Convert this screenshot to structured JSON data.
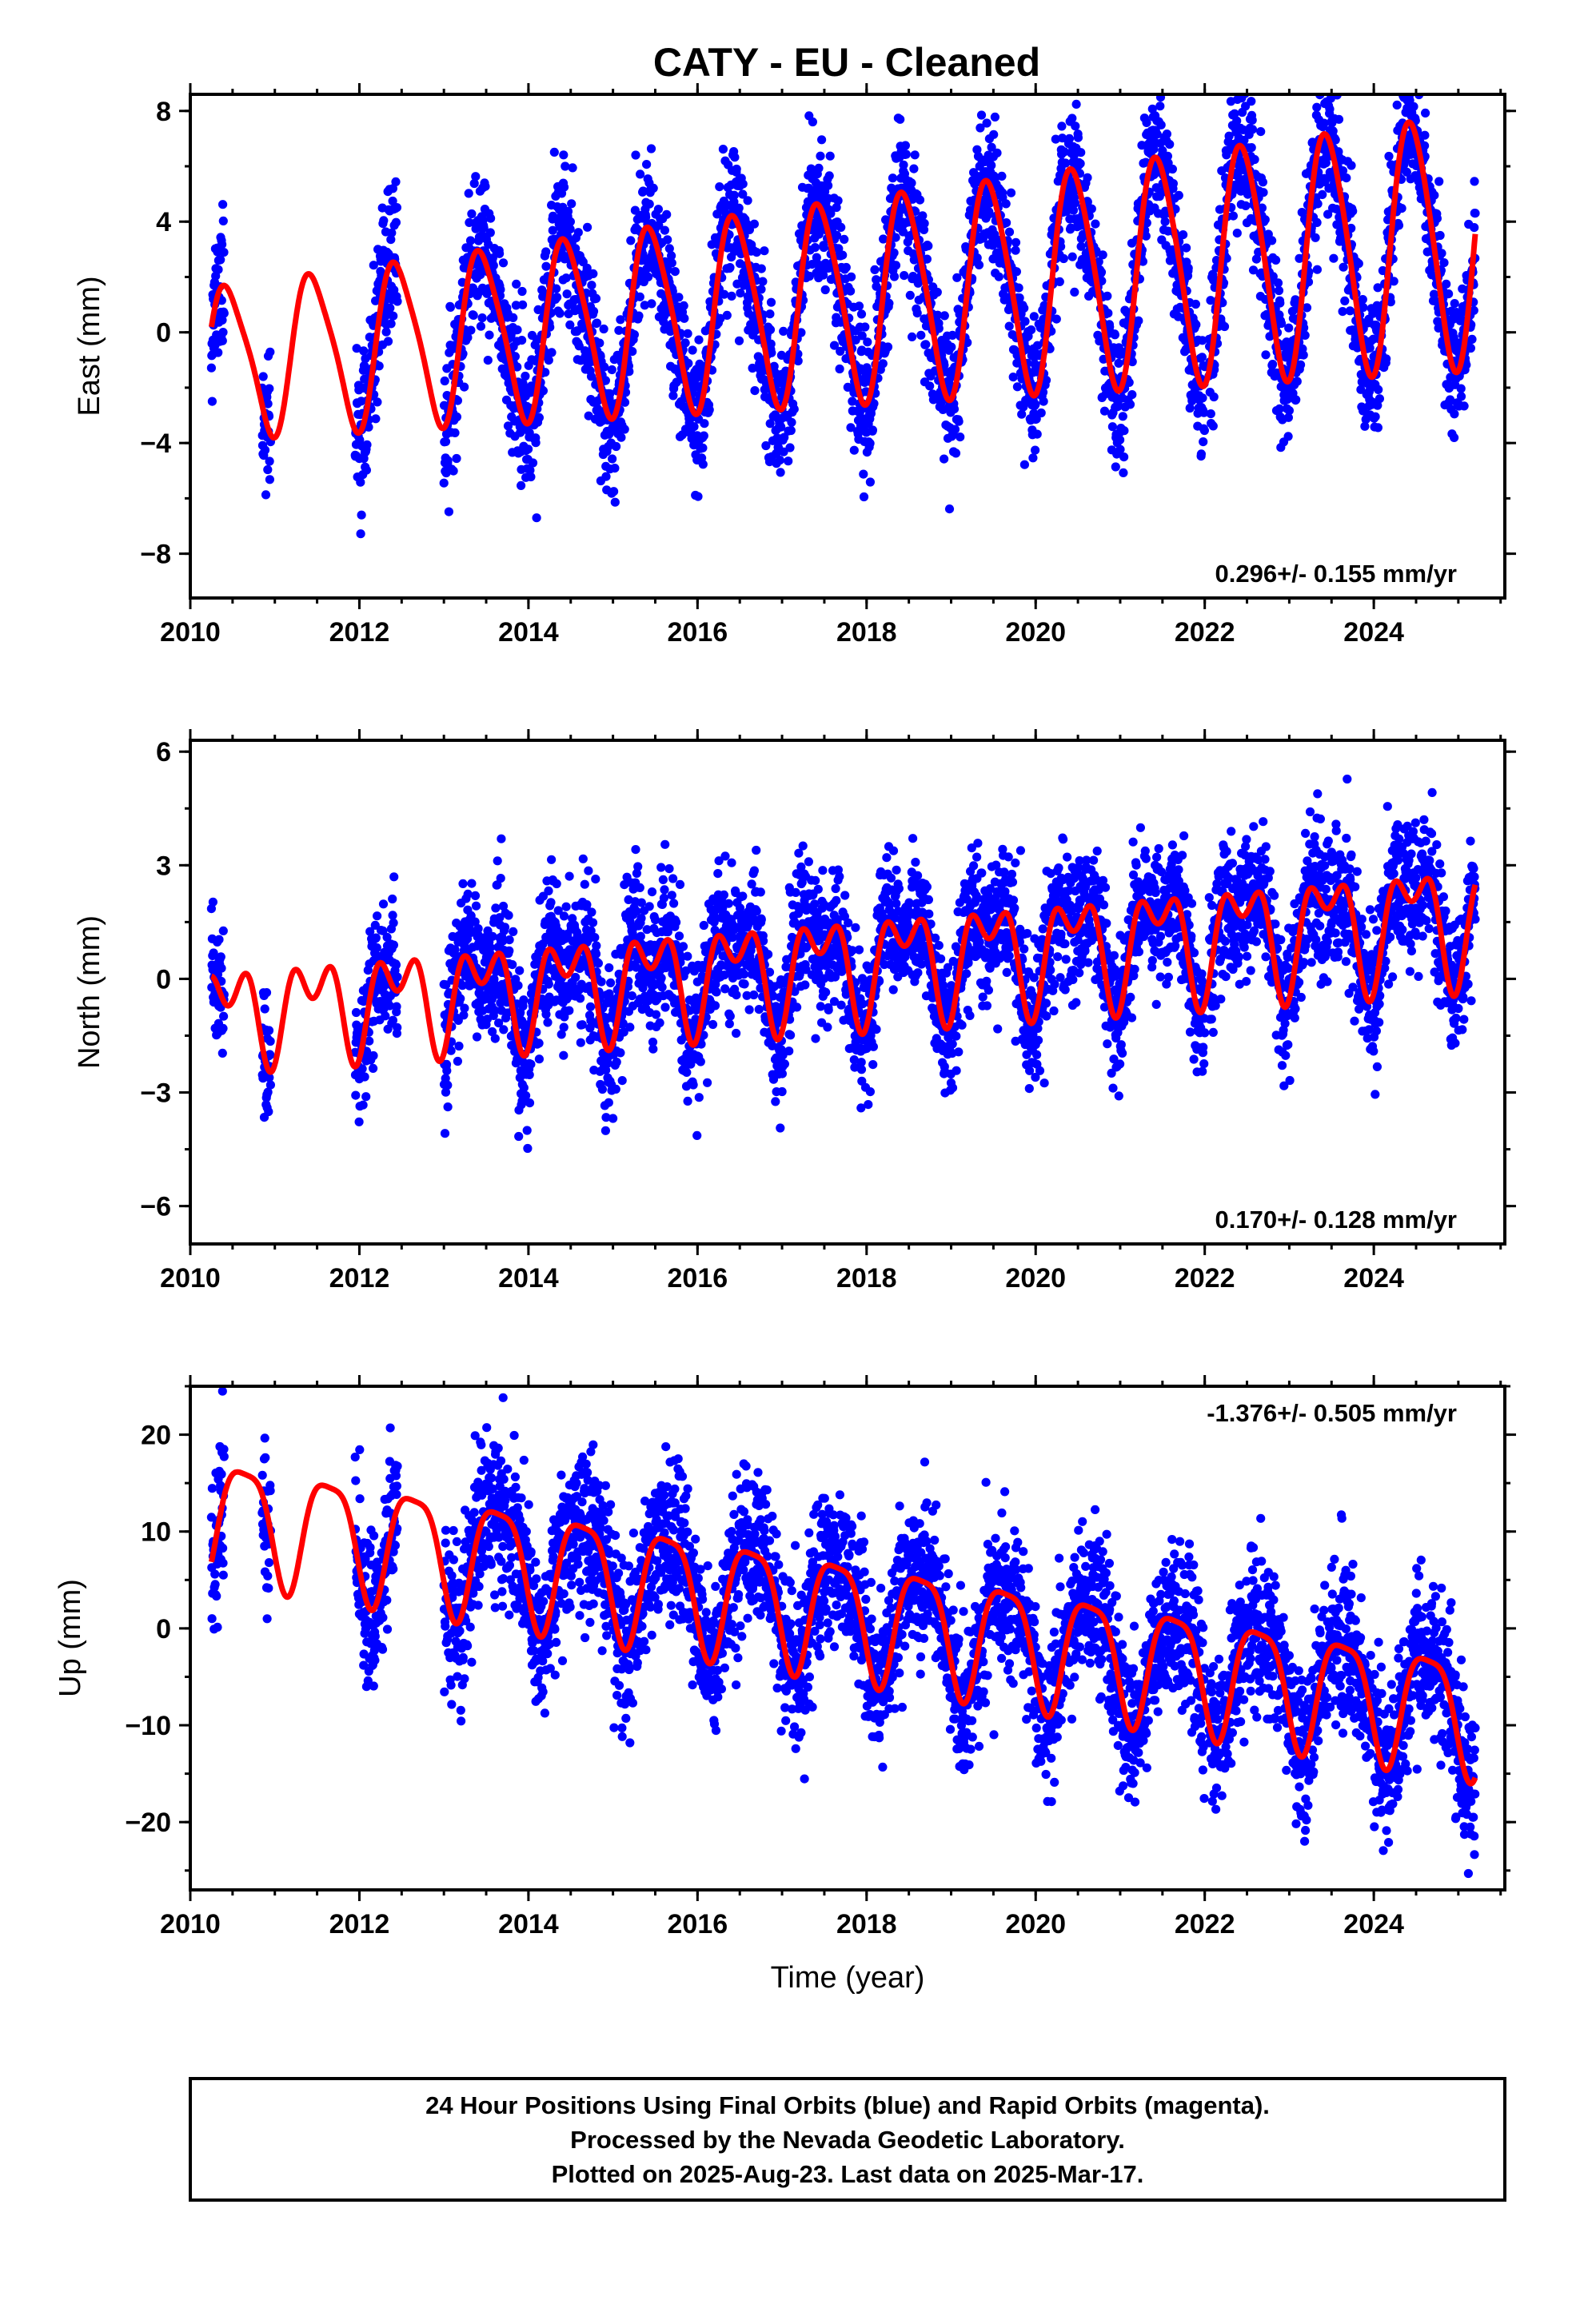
{
  "title": "CATY  - EU - Cleaned",
  "chart_data": [
    {
      "type": "scatter",
      "name": "east",
      "ylabel": "East (mm)",
      "xlabel": "",
      "xlim": [
        2010,
        2025.55
      ],
      "ylim": [
        -9.6,
        8.6
      ],
      "xticks": [
        2010,
        2012,
        2014,
        2016,
        2018,
        2020,
        2022,
        2024
      ],
      "yticks": [
        -8,
        -4,
        0,
        4,
        8
      ],
      "grid": false,
      "rate": "0.296+/- 0.155 mm/yr",
      "rate_position": "bottom-right",
      "colors": {
        "points": "#0000ff",
        "fit": "#ff0000"
      },
      "segments": [
        [
          2010.25,
          2010.4
        ],
        [
          2010.85,
          2010.95
        ],
        [
          2011.95,
          2012.45
        ],
        [
          2013.0,
          2022.0
        ],
        [
          2022.05,
          2025.2
        ]
      ],
      "model": {
        "offset": -1.1,
        "trend": 0.296,
        "annual_amp": 2.6,
        "annual_peak": 0.45,
        "semiannual_amp": 0.5,
        "semiannual_peak": 0.3,
        "amp_growth": 0.05,
        "noise_sd": 1.3,
        "points_per_year": 320
      },
      "fit_x": [
        2010.25,
        2025.2
      ],
      "seed": 11
    },
    {
      "type": "scatter",
      "name": "north",
      "ylabel": "North (mm)",
      "xlabel": "",
      "xlim": [
        2010,
        2025.55
      ],
      "ylim": [
        -7,
        6.3
      ],
      "xticks": [
        2010,
        2012,
        2014,
        2016,
        2018,
        2020,
        2022,
        2024
      ],
      "yticks": [
        -6,
        -3,
        0,
        3,
        6
      ],
      "grid": false,
      "rate": "0.170+/- 0.128 mm/yr",
      "rate_position": "bottom-right",
      "colors": {
        "points": "#0000ff",
        "fit": "#ff0000"
      },
      "segments": [
        [
          2010.25,
          2010.4
        ],
        [
          2010.85,
          2010.95
        ],
        [
          2011.95,
          2012.45
        ],
        [
          2013.0,
          2022.0
        ],
        [
          2022.05,
          2025.2
        ]
      ],
      "model": {
        "offset": -0.9,
        "trend": 0.17,
        "annual_amp": 0.9,
        "annual_peak": 0.45,
        "semiannual_amp": 0.8,
        "semiannual_peak": 0.2,
        "amp_growth": 0.03,
        "noise_sd": 0.9,
        "points_per_year": 320
      },
      "fit_x": [
        2010.25,
        2025.2
      ],
      "seed": 23
    },
    {
      "type": "scatter",
      "name": "up",
      "ylabel": "Up (mm)",
      "xlabel": "Time (year)",
      "xlim": [
        2010,
        2025.55
      ],
      "ylim": [
        -27,
        25
      ],
      "xticks": [
        2010,
        2012,
        2014,
        2016,
        2018,
        2020,
        2022,
        2024
      ],
      "yticks": [
        -20,
        -10,
        0,
        10,
        20
      ],
      "grid": false,
      "rate": "-1.376+/- 0.505 mm/yr",
      "rate_position": "top-right",
      "colors": {
        "points": "#0000ff",
        "fit": "#ff0000"
      },
      "segments": [
        [
          2010.25,
          2010.4
        ],
        [
          2010.85,
          2010.95
        ],
        [
          2011.95,
          2012.45
        ],
        [
          2013.0,
          2022.0
        ],
        [
          2022.05,
          2025.2
        ]
      ],
      "model": {
        "offset": 12.3,
        "trend": -1.376,
        "annual_amp": 6.0,
        "annual_peak": 0.64,
        "semiannual_amp": 1.5,
        "semiannual_peak": 0.4,
        "amp_growth": 0.0,
        "noise_sd": 4.0,
        "points_per_year": 320
      },
      "fit_x": [
        2010.25,
        2025.2
      ],
      "seed": 37
    }
  ],
  "footer": {
    "lines": [
      "24 Hour Positions Using Final Orbits (blue) and Rapid Orbits (magenta).",
      "Processed by the Nevada Geodetic Laboratory.",
      "Plotted on 2025-Aug-23. Last data on 2025-Mar-17."
    ]
  }
}
